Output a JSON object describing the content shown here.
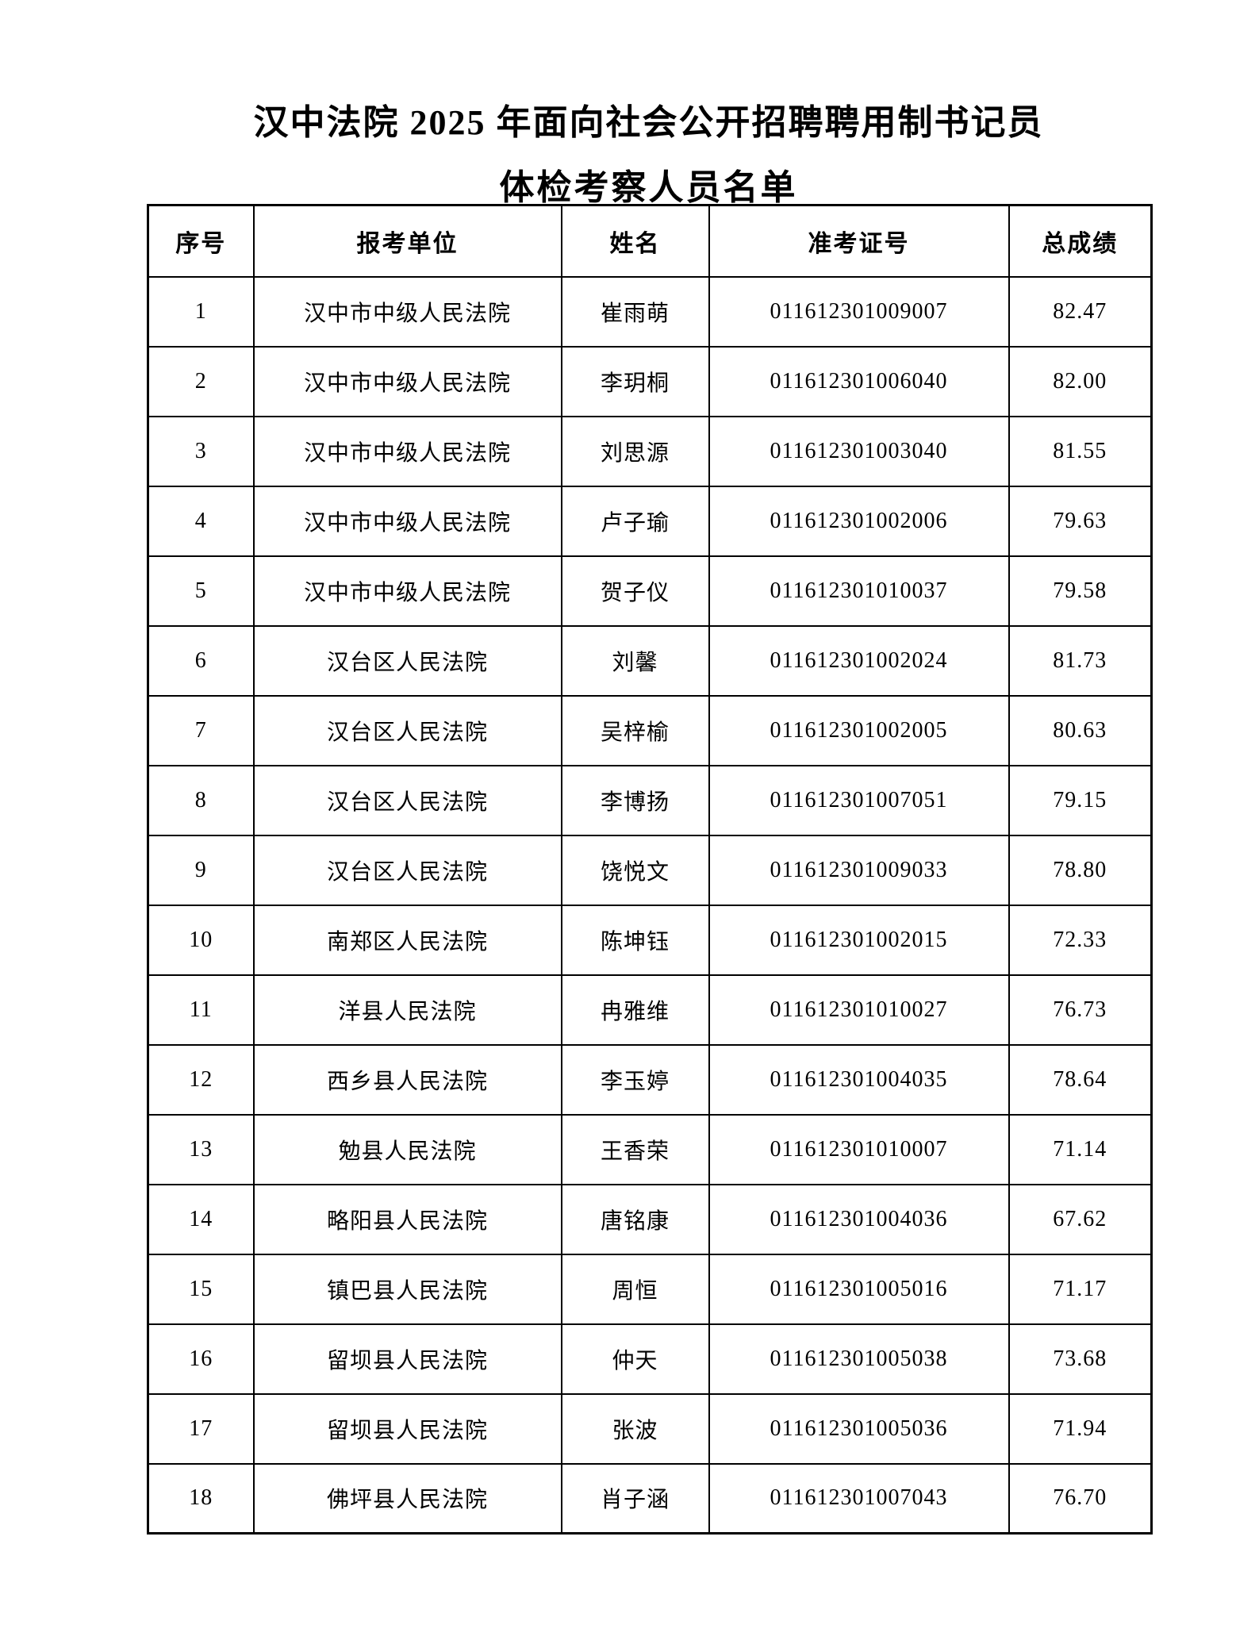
{
  "page": {
    "title_line1": "汉中法院 2025 年面向社会公开招聘聘用制书记员",
    "title_line2": "体检考察人员名单"
  },
  "colors": {
    "background": "#ffffff",
    "text": "#000000",
    "border": "#000000"
  },
  "table": {
    "columns": [
      "序号",
      "报考单位",
      "姓名",
      "准考证号",
      "总成绩"
    ],
    "rows": [
      [
        "1",
        "汉中市中级人民法院",
        "崔雨萌",
        "011612301009007",
        "82.47"
      ],
      [
        "2",
        "汉中市中级人民法院",
        "李玥桐",
        "011612301006040",
        "82.00"
      ],
      [
        "3",
        "汉中市中级人民法院",
        "刘思源",
        "011612301003040",
        "81.55"
      ],
      [
        "4",
        "汉中市中级人民法院",
        "卢子瑜",
        "011612301002006",
        "79.63"
      ],
      [
        "5",
        "汉中市中级人民法院",
        "贺子仪",
        "011612301010037",
        "79.58"
      ],
      [
        "6",
        "汉台区人民法院",
        "刘馨",
        "011612301002024",
        "81.73"
      ],
      [
        "7",
        "汉台区人民法院",
        "吴梓榆",
        "011612301002005",
        "80.63"
      ],
      [
        "8",
        "汉台区人民法院",
        "李博扬",
        "011612301007051",
        "79.15"
      ],
      [
        "9",
        "汉台区人民法院",
        "饶悦文",
        "011612301009033",
        "78.80"
      ],
      [
        "10",
        "南郑区人民法院",
        "陈坤钰",
        "011612301002015",
        "72.33"
      ],
      [
        "11",
        "洋县人民法院",
        "冉雅维",
        "011612301010027",
        "76.73"
      ],
      [
        "12",
        "西乡县人民法院",
        "李玉婷",
        "011612301004035",
        "78.64"
      ],
      [
        "13",
        "勉县人民法院",
        "王香荣",
        "011612301010007",
        "71.14"
      ],
      [
        "14",
        "略阳县人民法院",
        "唐铭康",
        "011612301004036",
        "67.62"
      ],
      [
        "15",
        "镇巴县人民法院",
        "周恒",
        "011612301005016",
        "71.17"
      ],
      [
        "16",
        "留坝县人民法院",
        "仲天",
        "011612301005038",
        "73.68"
      ],
      [
        "17",
        "留坝县人民法院",
        "张波",
        "011612301005036",
        "71.94"
      ],
      [
        "18",
        "佛坪县人民法院",
        "肖子涵",
        "011612301007043",
        "76.70"
      ]
    ]
  }
}
